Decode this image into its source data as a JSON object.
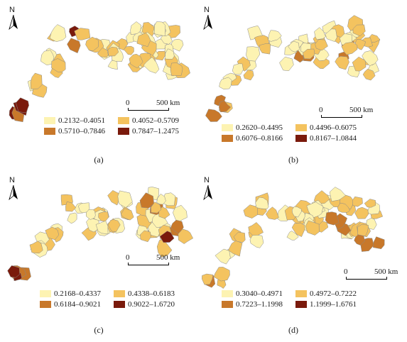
{
  "panels": [
    {
      "id": "a",
      "caption": "(a)",
      "north_label": "N",
      "scale": {
        "zero": "0",
        "distance": "500 km"
      },
      "legend": [
        {
          "label": "0.2132–0.4051",
          "color": "#fdf3b2"
        },
        {
          "label": "0.4052–0.5709",
          "color": "#f4c35f"
        },
        {
          "label": "0.5710–0.7846",
          "color": "#c8782a"
        },
        {
          "label": "0.7847–1.2475",
          "color": "#7a1a0c"
        }
      ]
    },
    {
      "id": "b",
      "caption": "(b)",
      "north_label": "N",
      "scale": {
        "zero": "0",
        "distance": "500 km"
      },
      "legend": [
        {
          "label": "0.2620–0.4495",
          "color": "#fdf3b2"
        },
        {
          "label": "0.4496–0.6075",
          "color": "#f4c35f"
        },
        {
          "label": "0.6076–0.8166",
          "color": "#c8782a"
        },
        {
          "label": "0.8167–1.0844",
          "color": "#7a1a0c"
        }
      ]
    },
    {
      "id": "c",
      "caption": "(c)",
      "north_label": "N",
      "scale": {
        "zero": "0",
        "distance": "500 km"
      },
      "legend": [
        {
          "label": "0.2168–0.4337",
          "color": "#fdf3b2"
        },
        {
          "label": "0.4338–0.6183",
          "color": "#f4c35f"
        },
        {
          "label": "0.6184–0.9021",
          "color": "#c8782a"
        },
        {
          "label": "0.9022–1.6720",
          "color": "#7a1a0c"
        }
      ]
    },
    {
      "id": "d",
      "caption": "(d)",
      "north_label": "N",
      "scale": {
        "zero": "0",
        "distance": "500 km"
      },
      "legend": [
        {
          "label": "0.3040–0.4971",
          "color": "#fdf3b2"
        },
        {
          "label": "0.4972–0.7222",
          "color": "#f4c35f"
        },
        {
          "label": "0.7223–1.1998",
          "color": "#c8782a"
        },
        {
          "label": "1.1999–1.6761",
          "color": "#7a1a0c"
        }
      ]
    }
  ]
}
